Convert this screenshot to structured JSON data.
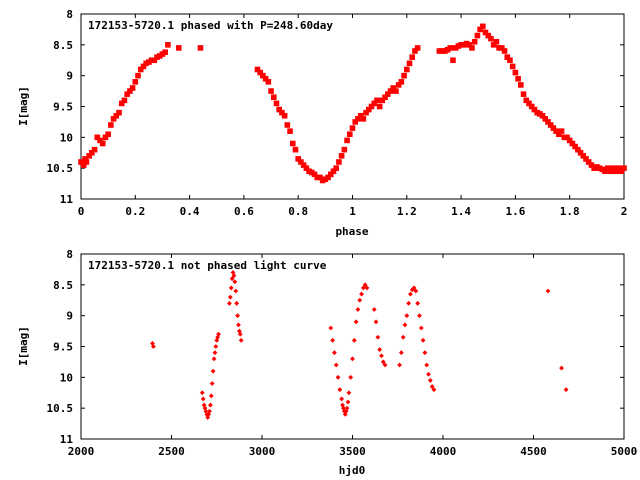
{
  "chart_data": [
    {
      "type": "scatter",
      "title": "172153-5720.1 phased with P=248.60day",
      "xlabel": "phase",
      "ylabel": "I[mag]",
      "xlim": [
        0,
        2
      ],
      "ylim": [
        11,
        8
      ],
      "y_inverted": true,
      "xticks": [
        "0",
        "0.2",
        "0.4",
        "0.6",
        "0.8",
        "1",
        "1.2",
        "1.4",
        "1.6",
        "1.8",
        "2"
      ],
      "yticks": [
        "8",
        "8.5",
        "9",
        "9.5",
        "10",
        "10.5",
        "11"
      ],
      "marker_color": "#ff0000",
      "marker": "filled-square",
      "grid": false,
      "series": [
        {
          "x": [
            0.0,
            0.01,
            0.015,
            0.02,
            0.03,
            0.04,
            0.05,
            0.06,
            0.07,
            0.08,
            0.09,
            0.1,
            0.11,
            0.12,
            0.13,
            0.14,
            0.15,
            0.16,
            0.17,
            0.18,
            0.19,
            0.2,
            0.21,
            0.22,
            0.23,
            0.24,
            0.25,
            0.26,
            0.27,
            0.28,
            0.29,
            0.3,
            0.31,
            0.32,
            0.36,
            0.44,
            0.65,
            0.66,
            0.67,
            0.68,
            0.69,
            0.7,
            0.71,
            0.72,
            0.73,
            0.74,
            0.75,
            0.76,
            0.77,
            0.78,
            0.79,
            0.8,
            0.81,
            0.82,
            0.83,
            0.84,
            0.85,
            0.86,
            0.87,
            0.88,
            0.89,
            0.9,
            0.91,
            0.92,
            0.93,
            0.94,
            0.95,
            0.96,
            0.97,
            0.98,
            0.99,
            1.0,
            1.01,
            1.02,
            1.03,
            1.04,
            1.05,
            1.06,
            1.07,
            1.08,
            1.09,
            1.1,
            1.11,
            1.12,
            1.13,
            1.14,
            1.15,
            1.16,
            1.17,
            1.18,
            1.19,
            1.2,
            1.21,
            1.22,
            1.23,
            1.24,
            1.32,
            1.33,
            1.34,
            1.35,
            1.36,
            1.37,
            1.38,
            1.39,
            1.4,
            1.41,
            1.42,
            1.43,
            1.44,
            1.45,
            1.46,
            1.47,
            1.48,
            1.49,
            1.5,
            1.51,
            1.52,
            1.53,
            1.54,
            1.55,
            1.56,
            1.57,
            1.58,
            1.59,
            1.6,
            1.61,
            1.62,
            1.63,
            1.64,
            1.65,
            1.66,
            1.67,
            1.68,
            1.69,
            1.7,
            1.71,
            1.72,
            1.73,
            1.74,
            1.75,
            1.76,
            1.77,
            1.78,
            1.79,
            1.8,
            1.81,
            1.82,
            1.83,
            1.84,
            1.85,
            1.86,
            1.87,
            1.88,
            1.89,
            1.9,
            1.91,
            1.92,
            1.93,
            1.94,
            1.95,
            1.96,
            1.97,
            1.98,
            1.99,
            2.0
          ],
          "y": [
            10.4,
            10.45,
            10.35,
            10.4,
            10.3,
            10.25,
            10.2,
            10.0,
            10.05,
            10.1,
            10.0,
            9.95,
            9.8,
            9.7,
            9.65,
            9.6,
            9.45,
            9.4,
            9.3,
            9.25,
            9.2,
            9.1,
            9.0,
            8.9,
            8.85,
            8.8,
            8.78,
            8.75,
            8.75,
            8.7,
            8.68,
            8.65,
            8.62,
            8.5,
            8.55,
            8.55,
            8.9,
            8.95,
            9.0,
            9.05,
            9.1,
            9.25,
            9.35,
            9.45,
            9.55,
            9.6,
            9.65,
            9.8,
            9.9,
            10.1,
            10.2,
            10.35,
            10.4,
            10.45,
            10.5,
            10.55,
            10.57,
            10.6,
            10.65,
            10.65,
            10.7,
            10.68,
            10.65,
            10.6,
            10.55,
            10.5,
            10.4,
            10.3,
            10.2,
            10.05,
            9.95,
            9.85,
            9.75,
            9.7,
            9.65,
            9.7,
            9.6,
            9.55,
            9.5,
            9.45,
            9.4,
            9.5,
            9.4,
            9.35,
            9.3,
            9.25,
            9.2,
            9.25,
            9.15,
            9.1,
            9.0,
            8.9,
            8.8,
            8.7,
            8.6,
            8.55,
            8.6,
            8.6,
            8.6,
            8.58,
            8.55,
            8.75,
            8.55,
            8.52,
            8.5,
            8.5,
            8.48,
            8.5,
            8.55,
            8.45,
            8.35,
            8.25,
            8.2,
            8.3,
            8.35,
            8.4,
            8.5,
            8.45,
            8.55,
            8.55,
            8.6,
            8.7,
            8.75,
            8.85,
            8.95,
            9.05,
            9.15,
            9.3,
            9.4,
            9.45,
            9.5,
            9.55,
            9.6,
            9.62,
            9.65,
            9.7,
            9.75,
            9.8,
            9.85,
            9.9,
            9.95,
            9.9,
            10.0,
            10.0,
            10.05,
            10.1,
            10.15,
            10.2,
            10.25,
            10.3,
            10.35,
            10.4,
            10.45,
            10.5,
            10.48,
            10.5,
            10.52,
            10.55,
            10.5,
            10.55,
            10.5,
            10.55,
            10.5,
            10.55,
            10.5
          ]
        }
      ]
    },
    {
      "type": "scatter",
      "title": "172153-5720.1 not phased light curve",
      "xlabel": "hjd0",
      "ylabel": "I[mag]",
      "xlim": [
        2000,
        5000
      ],
      "ylim": [
        11,
        8
      ],
      "y_inverted": true,
      "xticks": [
        "2000",
        "2500",
        "3000",
        "3500",
        "4000",
        "4500",
        "5000"
      ],
      "yticks": [
        "8",
        "8.5",
        "9",
        "9.5",
        "10",
        "10.5",
        "11"
      ],
      "marker_color": "#ff0000",
      "marker": "filled-diamond",
      "grid": false,
      "series": [
        {
          "x": [
            2395,
            2400,
            2670,
            2675,
            2680,
            2685,
            2690,
            2695,
            2700,
            2705,
            2710,
            2715,
            2720,
            2725,
            2730,
            2735,
            2740,
            2745,
            2750,
            2755,
            2760,
            2820,
            2825,
            2830,
            2835,
            2840,
            2845,
            2850,
            2855,
            2860,
            2865,
            2870,
            2875,
            2880,
            2885,
            3380,
            3390,
            3400,
            3410,
            3420,
            3430,
            3440,
            3445,
            3450,
            3455,
            3460,
            3465,
            3470,
            3475,
            3480,
            3490,
            3500,
            3510,
            3520,
            3530,
            3540,
            3550,
            3560,
            3570,
            3580,
            3620,
            3630,
            3640,
            3650,
            3660,
            3670,
            3680,
            3760,
            3770,
            3780,
            3790,
            3800,
            3810,
            3820,
            3830,
            3840,
            3850,
            3860,
            3870,
            3880,
            3890,
            3900,
            3910,
            3920,
            3930,
            3940,
            3950,
            4580,
            4655,
            4680
          ],
          "y": [
            9.45,
            9.5,
            10.25,
            10.35,
            10.45,
            10.5,
            10.55,
            10.6,
            10.65,
            10.6,
            10.55,
            10.45,
            10.3,
            10.1,
            9.9,
            9.7,
            9.6,
            9.5,
            9.4,
            9.35,
            9.3,
            8.8,
            8.7,
            8.55,
            8.4,
            8.3,
            8.35,
            8.45,
            8.6,
            8.8,
            9.0,
            9.15,
            9.25,
            9.3,
            9.4,
            9.2,
            9.4,
            9.6,
            9.8,
            10.0,
            10.2,
            10.35,
            10.45,
            10.5,
            10.55,
            10.6,
            10.55,
            10.5,
            10.4,
            10.25,
            10.0,
            9.7,
            9.4,
            9.1,
            8.9,
            8.75,
            8.65,
            8.55,
            8.5,
            8.55,
            8.9,
            9.1,
            9.35,
            9.55,
            9.65,
            9.75,
            9.8,
            9.8,
            9.6,
            9.35,
            9.15,
            9.0,
            8.8,
            8.65,
            8.58,
            8.55,
            8.6,
            8.8,
            9.0,
            9.2,
            9.4,
            9.6,
            9.8,
            9.95,
            10.05,
            10.15,
            10.2,
            8.6,
            9.85,
            10.2
          ]
        }
      ]
    }
  ]
}
